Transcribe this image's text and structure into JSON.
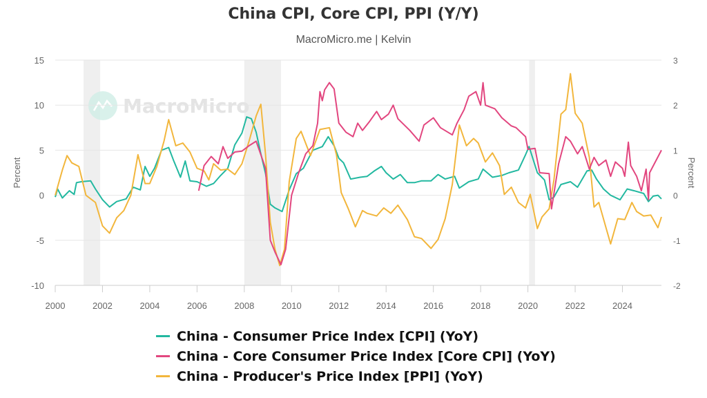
{
  "header": {
    "title": "China CPI, Core CPI, PPI (Y/Y)",
    "subtitle": "MacroMicro.me | Kelvin"
  },
  "watermark": "MacroMicro",
  "chart_data": {
    "type": "line",
    "title": "China CPI, Core CPI, PPI (Y/Y)",
    "subtitle": "MacroMicro.me | Kelvin",
    "x_ticks": [
      "2000",
      "2002",
      "2004",
      "2006",
      "2008",
      "2010",
      "2012",
      "2014",
      "2016",
      "2018",
      "2020",
      "2022",
      "2024"
    ],
    "xlim": [
      2000,
      2025.65
    ],
    "left_axis": {
      "label": "Percent",
      "ylim": [
        -10,
        15
      ],
      "ticks": [
        "15",
        "10",
        "5",
        "0",
        "-5",
        "-10"
      ]
    },
    "right_axis": {
      "label": "Percent",
      "ylim": [
        -2,
        3
      ],
      "ticks": [
        "3",
        "2",
        "1",
        "0",
        "-1",
        "-2"
      ]
    },
    "grid": true,
    "legend_position": "bottom",
    "shaded_periods": [
      [
        2001.2,
        2001.9
      ],
      [
        2008.0,
        2009.55
      ],
      [
        2020.05,
        2020.3
      ]
    ],
    "series": [
      {
        "name": "China - Consumer Price Index [CPI] (YoY)",
        "axis": "left",
        "color": "#22b8a0",
        "points": [
          [
            2000.0,
            -0.2
          ],
          [
            2000.1,
            0.7
          ],
          [
            2000.3,
            -0.3
          ],
          [
            2000.6,
            0.5
          ],
          [
            2000.8,
            0.1
          ],
          [
            2000.9,
            1.4
          ],
          [
            2001.1,
            1.5
          ],
          [
            2001.5,
            1.6
          ],
          [
            2001.7,
            0.7
          ],
          [
            2002.0,
            -0.5
          ],
          [
            2002.3,
            -1.3
          ],
          [
            2002.6,
            -0.7
          ],
          [
            2003.0,
            -0.4
          ],
          [
            2003.3,
            0.9
          ],
          [
            2003.6,
            0.6
          ],
          [
            2003.8,
            3.2
          ],
          [
            2004.0,
            2.1
          ],
          [
            2004.2,
            3.0
          ],
          [
            2004.5,
            5.0
          ],
          [
            2004.8,
            5.3
          ],
          [
            2005.0,
            3.9
          ],
          [
            2005.3,
            2.0
          ],
          [
            2005.5,
            3.8
          ],
          [
            2005.7,
            1.6
          ],
          [
            2006.0,
            1.5
          ],
          [
            2006.4,
            1.0
          ],
          [
            2006.7,
            1.3
          ],
          [
            2007.0,
            2.2
          ],
          [
            2007.3,
            3.0
          ],
          [
            2007.6,
            5.6
          ],
          [
            2007.9,
            6.9
          ],
          [
            2008.1,
            8.7
          ],
          [
            2008.3,
            8.5
          ],
          [
            2008.5,
            7.0
          ],
          [
            2008.7,
            4.6
          ],
          [
            2008.9,
            2.4
          ],
          [
            2009.1,
            -1.0
          ],
          [
            2009.3,
            -1.4
          ],
          [
            2009.6,
            -1.8
          ],
          [
            2009.9,
            0.6
          ],
          [
            2010.2,
            2.4
          ],
          [
            2010.5,
            3.0
          ],
          [
            2010.9,
            5.0
          ],
          [
            2011.3,
            5.4
          ],
          [
            2011.55,
            6.5
          ],
          [
            2011.8,
            5.5
          ],
          [
            2012.0,
            4.1
          ],
          [
            2012.2,
            3.6
          ],
          [
            2012.5,
            1.8
          ],
          [
            2012.9,
            2.0
          ],
          [
            2013.2,
            2.1
          ],
          [
            2013.5,
            2.7
          ],
          [
            2013.8,
            3.2
          ],
          [
            2014.0,
            2.5
          ],
          [
            2014.3,
            1.8
          ],
          [
            2014.6,
            2.3
          ],
          [
            2014.9,
            1.4
          ],
          [
            2015.2,
            1.4
          ],
          [
            2015.5,
            1.6
          ],
          [
            2015.9,
            1.6
          ],
          [
            2016.2,
            2.3
          ],
          [
            2016.5,
            1.8
          ],
          [
            2016.9,
            2.1
          ],
          [
            2017.1,
            0.8
          ],
          [
            2017.5,
            1.5
          ],
          [
            2017.9,
            1.8
          ],
          [
            2018.1,
            2.9
          ],
          [
            2018.5,
            2.0
          ],
          [
            2018.9,
            2.2
          ],
          [
            2019.2,
            2.5
          ],
          [
            2019.6,
            2.8
          ],
          [
            2019.9,
            4.5
          ],
          [
            2020.05,
            5.4
          ],
          [
            2020.4,
            2.5
          ],
          [
            2020.7,
            1.7
          ],
          [
            2020.9,
            -0.5
          ],
          [
            2021.1,
            -0.2
          ],
          [
            2021.4,
            1.2
          ],
          [
            2021.8,
            1.5
          ],
          [
            2022.1,
            0.9
          ],
          [
            2022.5,
            2.7
          ],
          [
            2022.7,
            2.8
          ],
          [
            2022.9,
            1.8
          ],
          [
            2023.2,
            0.7
          ],
          [
            2023.5,
            0.0
          ],
          [
            2023.9,
            -0.5
          ],
          [
            2024.2,
            0.7
          ],
          [
            2024.5,
            0.5
          ],
          [
            2024.9,
            0.2
          ],
          [
            2025.1,
            -0.7
          ],
          [
            2025.3,
            -0.1
          ],
          [
            2025.5,
            0.0
          ],
          [
            2025.65,
            -0.4
          ]
        ]
      },
      {
        "name": "China - Core Consumer Price Index [Core CPI] (YoY)",
        "axis": "right",
        "color": "#e2467f",
        "points": [
          [
            2006.07,
            0.1
          ],
          [
            2006.3,
            0.66
          ],
          [
            2006.6,
            0.86
          ],
          [
            2006.9,
            0.7
          ],
          [
            2007.1,
            1.08
          ],
          [
            2007.3,
            0.82
          ],
          [
            2007.6,
            0.96
          ],
          [
            2007.9,
            0.98
          ],
          [
            2008.2,
            1.1
          ],
          [
            2008.5,
            1.2
          ],
          [
            2008.7,
            0.9
          ],
          [
            2008.9,
            0.6
          ],
          [
            2009.1,
            -1.0
          ],
          [
            2009.3,
            -1.26
          ],
          [
            2009.55,
            -1.54
          ],
          [
            2009.75,
            -1.2
          ],
          [
            2010.0,
            0.0
          ],
          [
            2010.3,
            0.5
          ],
          [
            2010.6,
            0.92
          ],
          [
            2010.9,
            1.1
          ],
          [
            2011.1,
            1.6
          ],
          [
            2011.2,
            2.3
          ],
          [
            2011.3,
            2.1
          ],
          [
            2011.4,
            2.34
          ],
          [
            2011.6,
            2.5
          ],
          [
            2011.8,
            2.36
          ],
          [
            2012.0,
            1.6
          ],
          [
            2012.3,
            1.4
          ],
          [
            2012.6,
            1.3
          ],
          [
            2012.8,
            1.6
          ],
          [
            2013.0,
            1.44
          ],
          [
            2013.3,
            1.64
          ],
          [
            2013.6,
            1.86
          ],
          [
            2013.8,
            1.68
          ],
          [
            2014.1,
            1.8
          ],
          [
            2014.3,
            2.0
          ],
          [
            2014.5,
            1.7
          ],
          [
            2015.0,
            1.44
          ],
          [
            2015.4,
            1.2
          ],
          [
            2015.6,
            1.56
          ],
          [
            2016.0,
            1.72
          ],
          [
            2016.3,
            1.5
          ],
          [
            2016.8,
            1.34
          ],
          [
            2017.0,
            1.6
          ],
          [
            2017.3,
            1.9
          ],
          [
            2017.5,
            2.2
          ],
          [
            2017.8,
            2.3
          ],
          [
            2018.0,
            2.0
          ],
          [
            2018.1,
            2.5
          ],
          [
            2018.2,
            2.0
          ],
          [
            2018.6,
            1.92
          ],
          [
            2018.9,
            1.72
          ],
          [
            2019.3,
            1.54
          ],
          [
            2019.5,
            1.5
          ],
          [
            2019.9,
            1.3
          ],
          [
            2020.0,
            1.02
          ],
          [
            2020.3,
            1.04
          ],
          [
            2020.5,
            0.5
          ],
          [
            2020.9,
            0.48
          ],
          [
            2021.0,
            -0.3
          ],
          [
            2021.3,
            0.7
          ],
          [
            2021.6,
            1.3
          ],
          [
            2021.8,
            1.2
          ],
          [
            2022.1,
            0.92
          ],
          [
            2022.3,
            1.08
          ],
          [
            2022.6,
            0.58
          ],
          [
            2022.8,
            0.84
          ],
          [
            2023.0,
            0.66
          ],
          [
            2023.3,
            0.78
          ],
          [
            2023.5,
            0.42
          ],
          [
            2023.7,
            0.74
          ],
          [
            2024.0,
            0.6
          ],
          [
            2024.1,
            0.42
          ],
          [
            2024.25,
            1.18
          ],
          [
            2024.35,
            0.66
          ],
          [
            2024.6,
            0.42
          ],
          [
            2024.8,
            0.1
          ],
          [
            2025.0,
            0.58
          ],
          [
            2025.1,
            -0.1
          ],
          [
            2025.15,
            0.5
          ],
          [
            2025.65,
            1.0
          ]
        ]
      },
      {
        "name": "China - Producer's Price Index [PPI] (YoY)",
        "axis": "left",
        "color": "#f2b63c",
        "points": [
          [
            2000.0,
            0.0
          ],
          [
            2000.3,
            2.8
          ],
          [
            2000.5,
            4.4
          ],
          [
            2000.7,
            3.6
          ],
          [
            2001.0,
            3.2
          ],
          [
            2001.3,
            0.0
          ],
          [
            2001.7,
            -0.8
          ],
          [
            2002.0,
            -3.4
          ],
          [
            2002.3,
            -4.2
          ],
          [
            2002.6,
            -2.5
          ],
          [
            2002.9,
            -1.7
          ],
          [
            2003.2,
            0.0
          ],
          [
            2003.5,
            4.5
          ],
          [
            2003.8,
            1.3
          ],
          [
            2004.0,
            1.3
          ],
          [
            2004.3,
            3.2
          ],
          [
            2004.6,
            6.0
          ],
          [
            2004.8,
            8.4
          ],
          [
            2005.1,
            5.5
          ],
          [
            2005.4,
            5.8
          ],
          [
            2005.7,
            4.8
          ],
          [
            2006.0,
            3.0
          ],
          [
            2006.3,
            2.7
          ],
          [
            2006.5,
            1.7
          ],
          [
            2006.7,
            3.5
          ],
          [
            2007.0,
            2.8
          ],
          [
            2007.3,
            2.9
          ],
          [
            2007.6,
            2.3
          ],
          [
            2007.9,
            3.5
          ],
          [
            2008.2,
            6.0
          ],
          [
            2008.5,
            8.8
          ],
          [
            2008.7,
            10.1
          ],
          [
            2008.9,
            4.5
          ],
          [
            2009.1,
            -3.0
          ],
          [
            2009.3,
            -6.0
          ],
          [
            2009.5,
            -7.8
          ],
          [
            2009.7,
            -6.0
          ],
          [
            2009.9,
            1.5
          ],
          [
            2010.2,
            6.3
          ],
          [
            2010.4,
            7.1
          ],
          [
            2010.8,
            4.4
          ],
          [
            2011.2,
            7.3
          ],
          [
            2011.6,
            7.5
          ],
          [
            2011.9,
            4.5
          ],
          [
            2012.1,
            0.3
          ],
          [
            2012.4,
            -1.5
          ],
          [
            2012.7,
            -3.5
          ],
          [
            2013.0,
            -1.7
          ],
          [
            2013.2,
            -2.0
          ],
          [
            2013.6,
            -2.3
          ],
          [
            2013.9,
            -1.4
          ],
          [
            2014.2,
            -2.0
          ],
          [
            2014.5,
            -1.1
          ],
          [
            2014.9,
            -2.7
          ],
          [
            2015.2,
            -4.6
          ],
          [
            2015.5,
            -4.8
          ],
          [
            2015.9,
            -5.9
          ],
          [
            2016.2,
            -4.9
          ],
          [
            2016.5,
            -2.6
          ],
          [
            2016.8,
            1.2
          ],
          [
            2017.1,
            7.8
          ],
          [
            2017.4,
            5.5
          ],
          [
            2017.7,
            6.3
          ],
          [
            2017.9,
            5.8
          ],
          [
            2018.2,
            3.7
          ],
          [
            2018.5,
            4.7
          ],
          [
            2018.8,
            3.3
          ],
          [
            2019.0,
            0.1
          ],
          [
            2019.3,
            0.9
          ],
          [
            2019.6,
            -0.8
          ],
          [
            2019.9,
            -1.4
          ],
          [
            2020.1,
            0.1
          ],
          [
            2020.4,
            -3.7
          ],
          [
            2020.6,
            -2.4
          ],
          [
            2020.9,
            -1.5
          ],
          [
            2021.1,
            1.7
          ],
          [
            2021.4,
            9.0
          ],
          [
            2021.6,
            9.5
          ],
          [
            2021.8,
            13.5
          ],
          [
            2022.0,
            9.1
          ],
          [
            2022.3,
            8.0
          ],
          [
            2022.6,
            4.2
          ],
          [
            2022.8,
            -1.3
          ],
          [
            2023.0,
            -0.8
          ],
          [
            2023.5,
            -5.4
          ],
          [
            2023.8,
            -2.6
          ],
          [
            2024.1,
            -2.7
          ],
          [
            2024.4,
            -0.8
          ],
          [
            2024.6,
            -1.8
          ],
          [
            2024.9,
            -2.3
          ],
          [
            2025.2,
            -2.2
          ],
          [
            2025.5,
            -3.6
          ],
          [
            2025.65,
            -2.4
          ]
        ]
      }
    ]
  }
}
